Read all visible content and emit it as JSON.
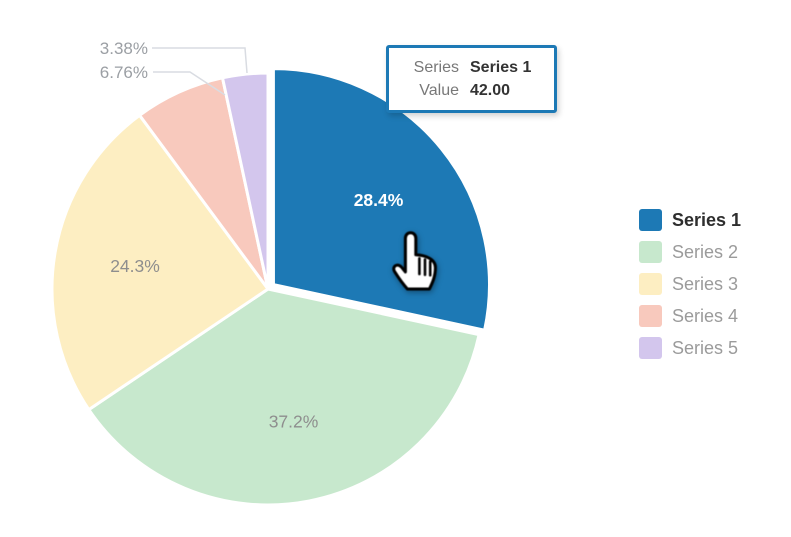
{
  "chart_data": {
    "type": "pie",
    "title": "",
    "legend_position": "right",
    "series": [
      {
        "name": "Series 1",
        "percent": 28.4,
        "percent_label": "28.4%",
        "value": "42.00",
        "color": "#1d79b5",
        "hovered": true,
        "label_position": "inside"
      },
      {
        "name": "Series 2",
        "percent": 37.2,
        "percent_label": "37.2%",
        "color": "#c7e8cd",
        "hovered": false,
        "label_position": "inside"
      },
      {
        "name": "Series 3",
        "percent": 24.3,
        "percent_label": "24.3%",
        "color": "#fdeec2",
        "hovered": false,
        "label_position": "inside"
      },
      {
        "name": "Series 4",
        "percent": 6.76,
        "percent_label": "6.76%",
        "color": "#f8c9bd",
        "hovered": false,
        "label_position": "outside"
      },
      {
        "name": "Series 5",
        "percent": 3.38,
        "percent_label": "3.38%",
        "color": "#d3c6ed",
        "hovered": false,
        "label_position": "outside"
      }
    ]
  },
  "tooltip": {
    "series_label": "Series",
    "series_value": "Series 1",
    "value_label": "Value",
    "value": "42.00",
    "border_color": "#1d79b5"
  },
  "colors": {
    "inside_label": "#8e8e8e",
    "hover_label": "#ffffff",
    "outside_label": "#9b9fa4",
    "leader_line": "#d9dce2",
    "slice_border": "#ffffff"
  }
}
